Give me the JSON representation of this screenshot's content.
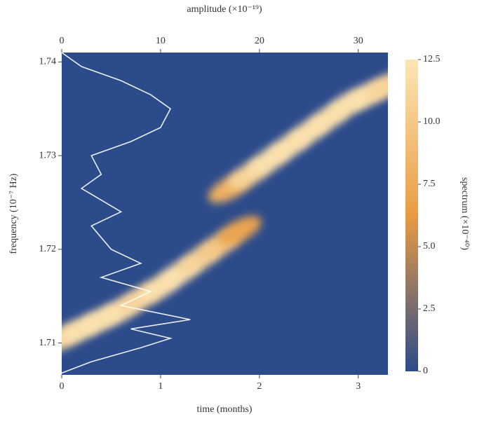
{
  "chart_data": {
    "type": "spectrogram",
    "xlabel": "time (months)",
    "x2label": "amplitude (×10⁻¹⁹)",
    "ylabel": "frequency (10⁻⁷ Hz)",
    "colorbar_label": "spectrum (×10⁻⁴⁰)",
    "xlim": [
      0,
      3.3
    ],
    "xticks": [
      0,
      1,
      2,
      3
    ],
    "x2lim": [
      0,
      33
    ],
    "x2ticks": [
      0,
      10,
      20,
      30
    ],
    "ylim": [
      1.7066,
      1.741
    ],
    "yticks": [
      1.71,
      1.72,
      1.73,
      1.74
    ],
    "clim": [
      0,
      12.5
    ],
    "cticks": [
      0,
      2.5,
      {
        "value": 5,
        "label": "5.0"
      },
      7.5,
      {
        "value": 10,
        "label": "10.0"
      },
      12.5
    ],
    "colormap": [
      "#2c4b8b",
      "#e99b42",
      "#fde6b6"
    ],
    "ridge": {
      "time": [
        0,
        0.2,
        0.4,
        0.6,
        0.8,
        1.0,
        1.2,
        1.4,
        1.6,
        1.8,
        1.7,
        1.9,
        2.1,
        2.3,
        2.5,
        2.7,
        2.9,
        3.1,
        3.3
      ],
      "frequency": [
        1.7105,
        1.7115,
        1.7125,
        1.7135,
        1.7148,
        1.716,
        1.7175,
        1.719,
        1.7205,
        1.722,
        1.7265,
        1.728,
        1.7295,
        1.731,
        1.7325,
        1.734,
        1.7355,
        1.7365,
        1.7375
      ],
      "intensity": [
        11,
        12,
        12,
        12,
        11,
        12,
        12,
        11,
        10,
        7,
        8,
        11,
        12,
        12,
        12,
        12,
        12,
        12,
        11
      ]
    },
    "amplitude_line": {
      "color": "#ffffff",
      "amplitude": [
        0,
        3,
        8,
        11,
        7,
        13,
        6,
        9,
        4,
        8,
        5,
        3,
        6,
        2,
        4,
        3,
        7,
        10,
        11,
        9,
        6,
        2,
        0
      ],
      "frequency": [
        1.7068,
        1.708,
        1.7095,
        1.7105,
        1.7115,
        1.7125,
        1.714,
        1.7155,
        1.717,
        1.7185,
        1.72,
        1.7225,
        1.724,
        1.7265,
        1.728,
        1.73,
        1.7315,
        1.733,
        1.735,
        1.7365,
        1.738,
        1.7395,
        1.741
      ]
    }
  }
}
